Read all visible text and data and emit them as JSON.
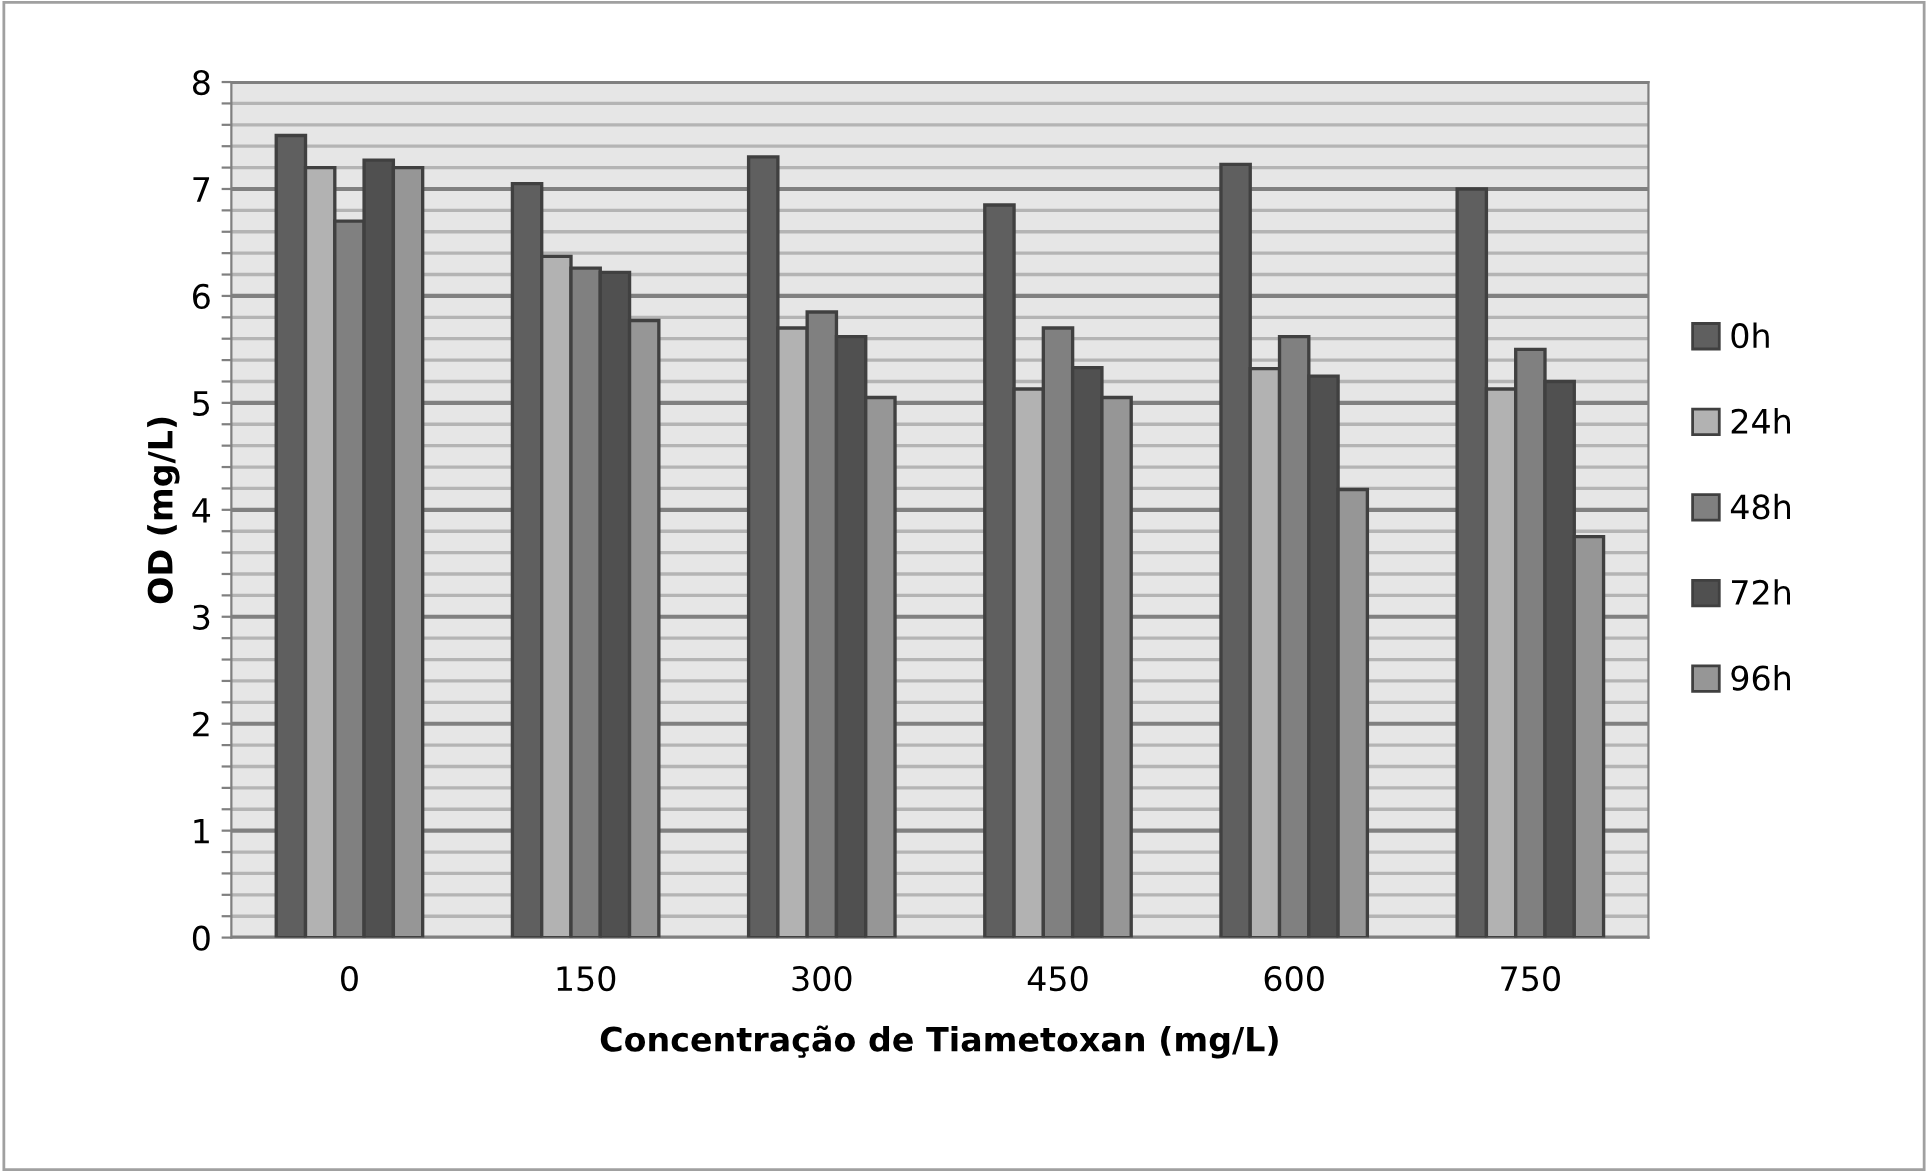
{
  "chart_data": {
    "type": "bar",
    "xlabel": "Concentração de Tiametoxan (mg/L)",
    "ylabel": "OD (mg/L)",
    "categories": [
      "0",
      "150",
      "300",
      "450",
      "600",
      "750"
    ],
    "series": [
      {
        "name": "0h",
        "color": "#5f5f5f",
        "values": [
          7.5,
          7.05,
          7.3,
          6.85,
          7.23,
          7.0
        ]
      },
      {
        "name": "24h",
        "color": "#b2b2b2",
        "values": [
          7.2,
          6.37,
          5.7,
          5.13,
          5.32,
          5.13
        ]
      },
      {
        "name": "48h",
        "color": "#808080",
        "values": [
          6.7,
          6.26,
          5.85,
          5.7,
          5.62,
          5.5
        ]
      },
      {
        "name": "72h",
        "color": "#505050",
        "values": [
          7.27,
          6.22,
          5.62,
          5.33,
          5.25,
          5.2
        ]
      },
      {
        "name": "96h",
        "color": "#969696",
        "values": [
          7.2,
          5.77,
          5.05,
          5.05,
          4.19,
          3.75
        ]
      }
    ],
    "ylim": [
      0,
      8
    ],
    "yticks": [
      0,
      {
        "value": 0.2,
        "label": null
      },
      {
        "value": 0.4,
        "label": null
      },
      {
        "value": 0.6,
        "label": null
      },
      {
        "value": 0.8,
        "label": null
      },
      1,
      {
        "value": 1.2,
        "label": null
      },
      {
        "value": 1.4,
        "label": null
      },
      {
        "value": 1.6,
        "label": null
      },
      {
        "value": 1.8,
        "label": null
      },
      2,
      {
        "value": 2.2,
        "label": null
      },
      {
        "value": 2.4,
        "label": null
      },
      {
        "value": 2.6,
        "label": null
      },
      {
        "value": 2.8,
        "label": null
      },
      3,
      {
        "value": 3.2,
        "label": null
      },
      {
        "value": 3.4,
        "label": null
      },
      {
        "value": 3.6,
        "label": null
      },
      {
        "value": 3.8,
        "label": null
      },
      4,
      {
        "value": 4.2,
        "label": null
      },
      {
        "value": 4.4,
        "label": null
      },
      {
        "value": 4.6,
        "label": null
      },
      {
        "value": 4.8,
        "label": null
      },
      5,
      {
        "value": 5.2,
        "label": null
      },
      {
        "value": 5.4,
        "label": null
      },
      {
        "value": 5.6,
        "label": null
      },
      {
        "value": 5.8,
        "label": null
      },
      6,
      {
        "value": 6.2,
        "label": null
      },
      {
        "value": 6.4,
        "label": null
      },
      {
        "value": 6.6,
        "label": null
      },
      {
        "value": 6.8,
        "label": null
      },
      7,
      {
        "value": 7.2,
        "label": null
      },
      {
        "value": 7.4,
        "label": null
      },
      {
        "value": 7.6,
        "label": null
      },
      {
        "value": 7.8,
        "label": null
      },
      8
    ],
    "grid": "y",
    "legend": "right"
  }
}
